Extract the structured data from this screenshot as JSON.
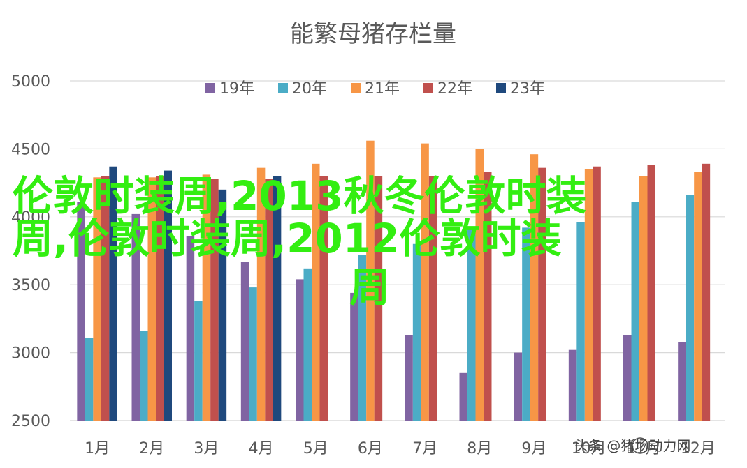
{
  "chart_data": {
    "type": "bar",
    "title": "能繁母猪存栏量",
    "xlabel": "",
    "ylabel": "",
    "categories": [
      "1月",
      "2月",
      "3月",
      "4月",
      "5月",
      "6月",
      "7月",
      "8月",
      "9月",
      "10月",
      "11月",
      "12月"
    ],
    "ylim": [
      2500,
      5000
    ],
    "yticks": [
      2500,
      3000,
      3500,
      4000,
      4500,
      5000
    ],
    "grid": true,
    "legend_position": "top",
    "series": [
      {
        "name": "19年",
        "color": "#8064a2",
        "values": [
          4110,
          4020,
          3860,
          3670,
          3540,
          3440,
          3130,
          2850,
          3000,
          3020,
          3130,
          3080
        ]
      },
      {
        "name": "20年",
        "color": "#4bacc6",
        "values": [
          3110,
          3160,
          3380,
          3480,
          3620,
          3720,
          3800,
          3920,
          3920,
          3960,
          4110,
          4160
        ]
      },
      {
        "name": "21年",
        "color": "#f79646",
        "values": [
          4290,
          4290,
          4310,
          4360,
          4390,
          4560,
          4540,
          4500,
          4460,
          4350,
          4300,
          4330
        ]
      },
      {
        "name": "22年",
        "color": "#c0504d",
        "values": [
          4300,
          4300,
          4280,
          4280,
          4300,
          4300,
          4300,
          4330,
          4360,
          4370,
          4380,
          4390
        ]
      },
      {
        "name": "23年",
        "color": "#1f497d",
        "values": [
          4370,
          4340,
          4200,
          4300,
          null,
          null,
          null,
          null,
          null,
          null,
          null,
          null
        ]
      }
    ]
  },
  "overlay": {
    "lines": [
      "伦敦时装周,2013秋冬伦敦时装",
      "周,伦敦时装周,2012伦敦时装",
      "周"
    ]
  },
  "watermark": {
    "text": "头条 @猪场动力网"
  }
}
